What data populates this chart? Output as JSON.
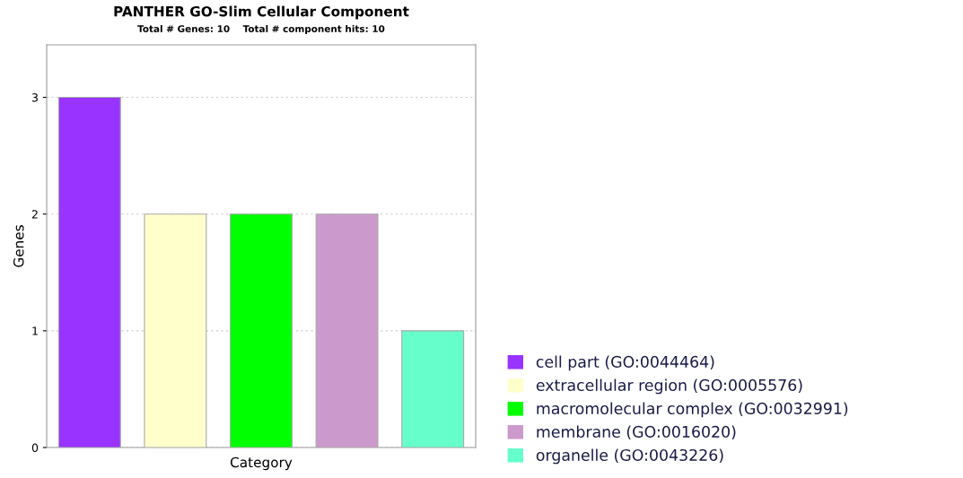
{
  "chart_data": {
    "type": "bar",
    "title": "PANTHER GO-Slim Cellular Component",
    "subtitle": "Total # Genes: 10    Total # component hits: 10",
    "xlabel": "Category",
    "ylabel": "Genes",
    "categories": [
      null
    ],
    "series": [
      {
        "name": "cell part (GO:0044464)",
        "color": "#9933ff",
        "values": [
          3
        ]
      },
      {
        "name": "extracellular region (GO:0005576)",
        "color": "#ffffcc",
        "values": [
          2
        ]
      },
      {
        "name": "macromolecular complex (GO:0032991)",
        "color": "#00ff00",
        "values": [
          2
        ]
      },
      {
        "name": "membrane (GO:0016020)",
        "color": "#cc99cc",
        "values": [
          2
        ]
      },
      {
        "name": "organelle (GO:0043226)",
        "color": "#66ffcc",
        "values": [
          1
        ]
      }
    ],
    "ylim": [
      0,
      3.45
    ],
    "yticks": [
      0,
      1,
      2,
      3
    ],
    "grid": "y",
    "legend": "right"
  }
}
